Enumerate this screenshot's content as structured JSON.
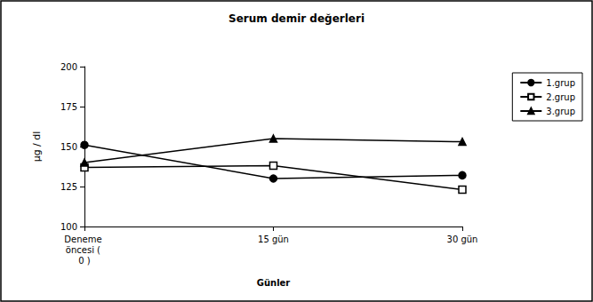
{
  "chart_data": {
    "type": "line",
    "title": "Serum demir değerleri",
    "x_label": "Günler",
    "y_label": "µg / dl",
    "categories": [
      "Deneme öncesi ( 0 )",
      "15 gün",
      "30 gün"
    ],
    "series": [
      {
        "name": "1.grup",
        "color": "#000000",
        "marker": "circle",
        "values": [
          151,
          130,
          132
        ]
      },
      {
        "name": "2.grup",
        "color": "#000000",
        "marker": "open-square",
        "values": [
          137,
          138,
          123
        ]
      },
      {
        "name": "3.grup",
        "color": "#000000",
        "marker": "triangle",
        "values": [
          140,
          155,
          153
        ]
      }
    ],
    "ylim": [
      100,
      200
    ],
    "yticks": [
      100,
      125,
      150,
      175,
      200
    ],
    "grid": false,
    "legend": "right"
  }
}
